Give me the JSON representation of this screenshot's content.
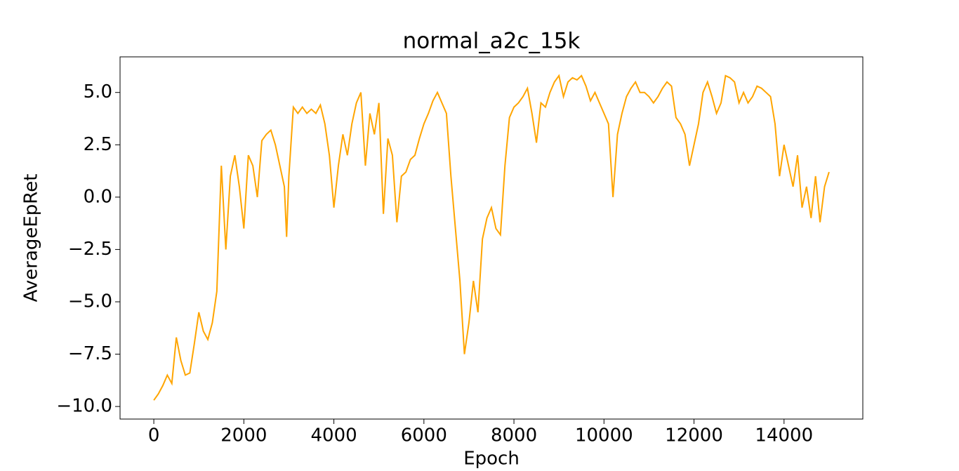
{
  "chart_data": {
    "type": "line",
    "title": "normal_a2c_15k",
    "xlabel": "Epoch",
    "ylabel": "AverageEpRet",
    "x": [
      0,
      100,
      200,
      300,
      400,
      500,
      600,
      700,
      800,
      900,
      1000,
      1100,
      1200,
      1300,
      1400,
      1500,
      1600,
      1700,
      1800,
      1900,
      2000,
      2100,
      2200,
      2300,
      2400,
      2500,
      2600,
      2700,
      2800,
      2900,
      2950,
      3000,
      3100,
      3200,
      3300,
      3400,
      3500,
      3600,
      3700,
      3800,
      3900,
      4000,
      4100,
      4200,
      4300,
      4400,
      4500,
      4600,
      4700,
      4800,
      4900,
      5000,
      5100,
      5200,
      5300,
      5400,
      5500,
      5600,
      5700,
      5800,
      5900,
      6000,
      6100,
      6200,
      6300,
      6400,
      6500,
      6600,
      6700,
      6800,
      6900,
      7000,
      7100,
      7200,
      7300,
      7400,
      7500,
      7600,
      7700,
      7800,
      7900,
      8000,
      8100,
      8200,
      8300,
      8400,
      8500,
      8600,
      8700,
      8800,
      8900,
      9000,
      9100,
      9200,
      9300,
      9400,
      9500,
      9600,
      9700,
      9800,
      9900,
      10000,
      10100,
      10200,
      10300,
      10400,
      10500,
      10600,
      10700,
      10800,
      10900,
      11000,
      11100,
      11200,
      11300,
      11400,
      11500,
      11600,
      11700,
      11800,
      11900,
      12000,
      12100,
      12200,
      12300,
      12400,
      12500,
      12600,
      12700,
      12800,
      12900,
      13000,
      13100,
      13200,
      13300,
      13400,
      13500,
      13600,
      13700,
      13800,
      13900,
      14000,
      14100,
      14200,
      14300,
      14400,
      14500,
      14600,
      14700,
      14800,
      14900,
      15000
    ],
    "series": [
      {
        "name": "AverageEpRet",
        "color": "#ffa500",
        "values": [
          -9.7,
          -9.4,
          -9.0,
          -8.5,
          -8.9,
          -6.7,
          -7.8,
          -8.5,
          -8.4,
          -7.0,
          -5.5,
          -6.4,
          -6.8,
          -6.0,
          -4.5,
          1.5,
          -2.5,
          1.0,
          2.0,
          0.5,
          -1.5,
          2.0,
          1.5,
          0.0,
          2.7,
          3.0,
          3.2,
          2.5,
          1.5,
          0.5,
          -1.9,
          1.0,
          4.3,
          4.0,
          4.3,
          4.0,
          4.2,
          4.0,
          4.4,
          3.5,
          2.0,
          -0.5,
          1.5,
          3.0,
          2.0,
          3.5,
          4.5,
          5.0,
          1.5,
          4.0,
          3.0,
          4.5,
          -0.8,
          2.8,
          2.0,
          -1.2,
          1.0,
          1.2,
          1.8,
          2.0,
          2.8,
          3.5,
          4.0,
          4.6,
          5.0,
          4.5,
          4.0,
          1.0,
          -1.5,
          -4.0,
          -7.5,
          -6.0,
          -4.0,
          -5.5,
          -2.0,
          -1.0,
          -0.5,
          -1.5,
          -1.8,
          1.5,
          3.8,
          4.3,
          4.5,
          4.8,
          5.2,
          4.0,
          2.6,
          4.5,
          4.3,
          5.0,
          5.5,
          5.8,
          4.8,
          5.5,
          5.7,
          5.6,
          5.8,
          5.3,
          4.6,
          5.0,
          4.5,
          4.0,
          3.5,
          0.0,
          3.0,
          4.0,
          4.8,
          5.2,
          5.5,
          5.0,
          5.0,
          4.8,
          4.5,
          4.8,
          5.2,
          5.5,
          5.3,
          3.8,
          3.5,
          3.0,
          1.5,
          2.5,
          3.5,
          5.0,
          5.5,
          4.8,
          4.0,
          4.5,
          5.8,
          5.7,
          5.5,
          4.5,
          5.0,
          4.5,
          4.8,
          5.3,
          5.2,
          5.0,
          4.8,
          3.5,
          1.0,
          2.5,
          1.5,
          0.5,
          2.0,
          -0.5,
          0.5,
          -1.0,
          1.0,
          -1.2,
          0.5,
          1.2
        ]
      }
    ],
    "xlim": [
      -750,
      15750
    ],
    "xticks": [
      0,
      2000,
      4000,
      6000,
      8000,
      10000,
      12000,
      14000
    ],
    "ylim": [
      -10.6,
      6.7
    ],
    "yticks": [
      {
        "value": -10,
        "label": "−10.0"
      },
      {
        "value": -7.5,
        "label": "−7.5"
      },
      {
        "value": -5,
        "label": "−5.0"
      },
      {
        "value": -2.5,
        "label": "−2.5"
      },
      {
        "value": 0,
        "label": "0.0"
      },
      2.5,
      {
        "value": 5,
        "label": "5.0"
      }
    ]
  }
}
